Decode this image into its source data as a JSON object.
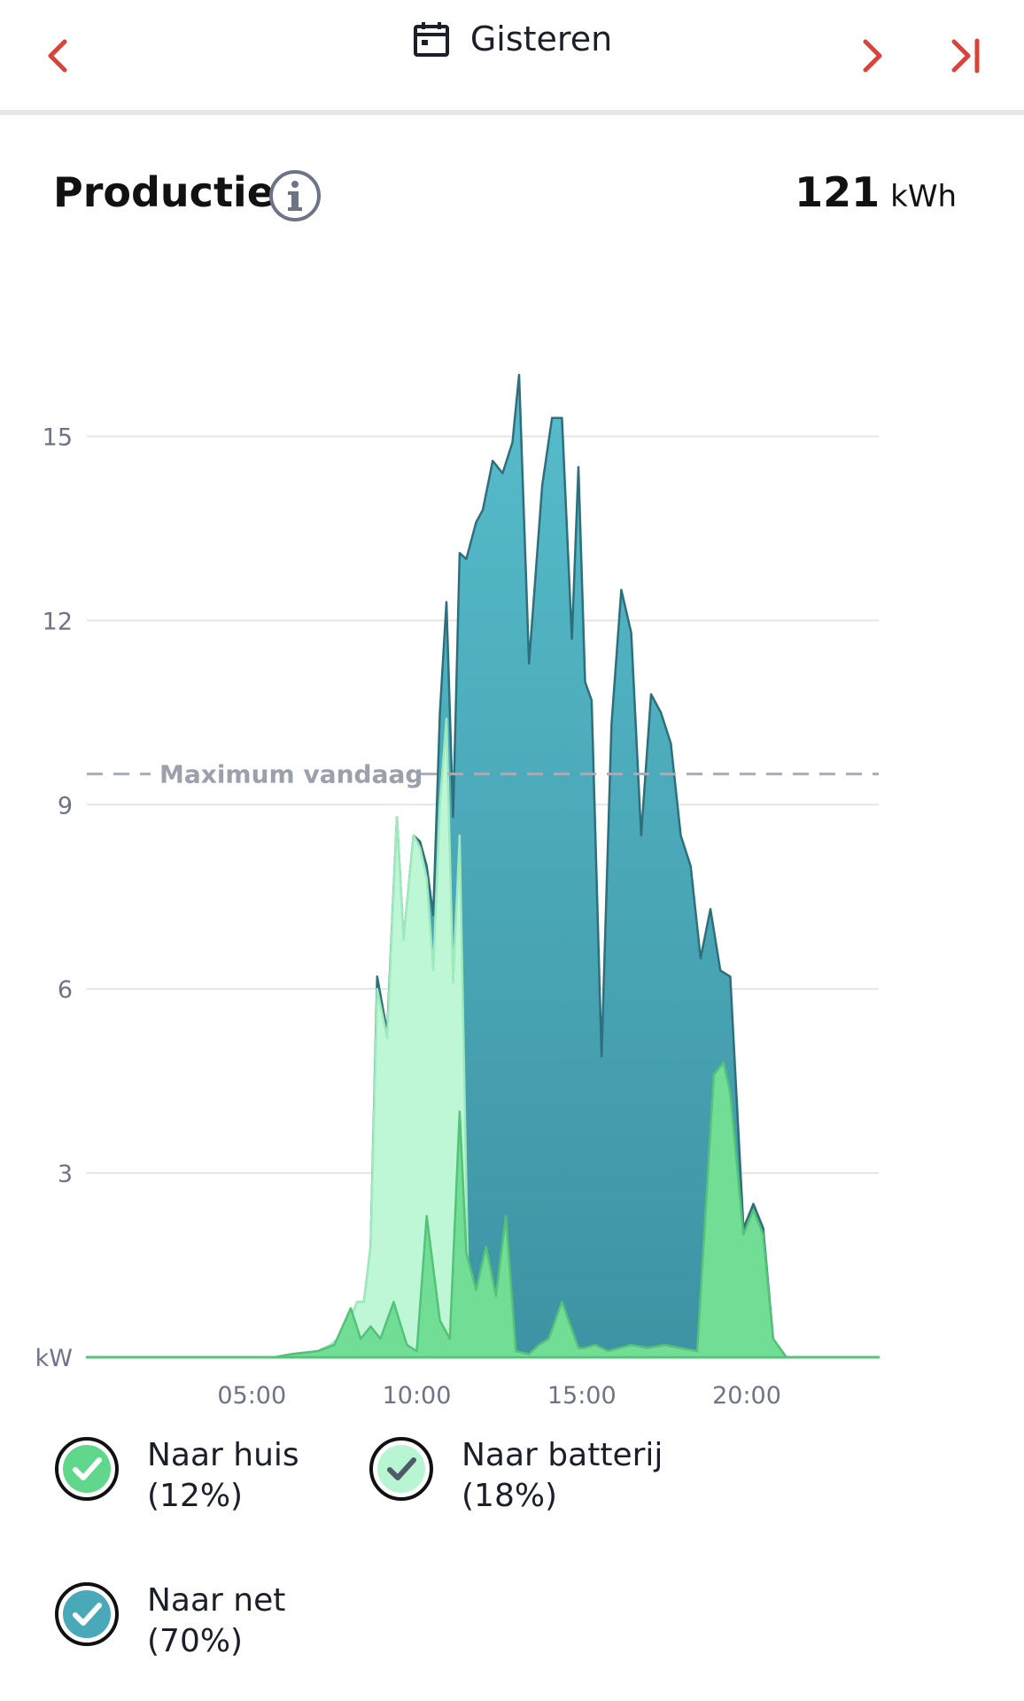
{
  "header": {
    "date_label": "Gisteren",
    "icons": {
      "prev": "chevron-left-icon",
      "next": "chevron-right-icon",
      "last": "skip-to-end-icon",
      "calendar": "calendar-icon"
    }
  },
  "production": {
    "title": "Productie",
    "total_value": "121",
    "total_unit": "kWh"
  },
  "colors": {
    "accent": "#d9433a",
    "net_fill": "#4aa9b8",
    "net_stroke": "#2e6f7c",
    "battery_fill": "#bdf7d5",
    "house_fill": "#72dd95",
    "house_stroke": "#54c278",
    "grid": "#e3e5e8",
    "max_line": "#a7adb8"
  },
  "chart_data": {
    "type": "area",
    "y_unit_label": "kW",
    "y_ticks": [
      "3",
      "6",
      "9",
      "12",
      "15"
    ],
    "x_ticks": [
      "05:00",
      "10:00",
      "15:00",
      "20:00"
    ],
    "ylim": [
      0,
      17
    ],
    "grid": true,
    "max_line": {
      "label": "Maximum vandaag",
      "value": 9.5
    },
    "series": [
      {
        "name": "Naar net",
        "x": [
          0,
          5.7,
          6.2,
          7.0,
          7.4,
          7.8,
          8.2,
          8.4,
          8.6,
          8.8,
          9.1,
          9.4,
          9.6,
          9.9,
          10.1,
          10.3,
          10.5,
          10.7,
          10.9,
          11.1,
          11.3,
          11.5,
          11.8,
          12.0,
          12.3,
          12.6,
          12.9,
          13.1,
          13.4,
          13.8,
          14.1,
          14.4,
          14.7,
          14.9,
          15.1,
          15.3,
          15.6,
          15.9,
          16.2,
          16.5,
          16.8,
          17.1,
          17.4,
          17.7,
          18.0,
          18.3,
          18.6,
          18.9,
          19.2,
          19.5,
          19.9,
          20.2,
          20.5,
          20.8,
          21.2,
          22,
          24
        ],
        "values": [
          0,
          0,
          0.05,
          0.1,
          0.2,
          0.4,
          0.9,
          0.9,
          1.8,
          6.2,
          5.3,
          8.8,
          6.8,
          8.5,
          8.4,
          8.0,
          7.2,
          10.5,
          12.3,
          8.8,
          13.1,
          13.0,
          13.6,
          13.8,
          14.6,
          14.4,
          14.9,
          16.0,
          11.3,
          14.2,
          15.3,
          15.3,
          11.7,
          14.5,
          11.0,
          10.7,
          4.9,
          10.3,
          12.5,
          11.8,
          8.5,
          10.8,
          10.5,
          10.0,
          8.5,
          8.0,
          6.5,
          7.3,
          6.3,
          6.2,
          2.1,
          2.5,
          2.1,
          0.3,
          0,
          0,
          0
        ]
      },
      {
        "name": "Naar batterij",
        "x": [
          0,
          5.7,
          6.2,
          7.0,
          7.4,
          7.8,
          8.2,
          8.4,
          8.6,
          8.8,
          9.1,
          9.4,
          9.6,
          9.9,
          10.1,
          10.3,
          10.5,
          10.7,
          10.9,
          11.1,
          11.3,
          11.6,
          12.0,
          24
        ],
        "values": [
          0,
          0,
          0.05,
          0.1,
          0.2,
          0.4,
          0.9,
          0.9,
          1.8,
          6.0,
          5.2,
          8.8,
          6.8,
          8.5,
          8.3,
          7.8,
          6.3,
          9.0,
          10.4,
          6.1,
          8.5,
          0,
          0,
          0
        ]
      },
      {
        "name": "Naar huis",
        "x": [
          0,
          5.7,
          6.2,
          7.0,
          7.5,
          8.0,
          8.3,
          8.6,
          8.9,
          9.3,
          9.7,
          10.0,
          10.3,
          10.7,
          11.0,
          11.3,
          11.5,
          11.8,
          12.1,
          12.4,
          12.7,
          13.0,
          13.4,
          13.7,
          14.0,
          14.4,
          14.9,
          15.1,
          15.4,
          15.8,
          16.5,
          17.0,
          17.5,
          18.0,
          18.5,
          19.0,
          19.3,
          19.5,
          19.9,
          20.2,
          20.5,
          20.8,
          21.2,
          22,
          24
        ],
        "values": [
          0,
          0,
          0.05,
          0.1,
          0.2,
          0.8,
          0.3,
          0.5,
          0.3,
          0.9,
          0.2,
          0.1,
          2.3,
          0.6,
          0.3,
          4.0,
          1.7,
          1.1,
          1.8,
          1.0,
          2.3,
          0.1,
          0.05,
          0.2,
          0.3,
          0.9,
          0.15,
          0.15,
          0.2,
          0.1,
          0.2,
          0.15,
          0.2,
          0.15,
          0.1,
          4.6,
          4.8,
          4.3,
          2.0,
          2.4,
          2.0,
          0.3,
          0,
          0,
          0
        ]
      }
    ]
  },
  "legend": [
    {
      "title": "Naar huis",
      "pct": "(12%)",
      "icon": "check-circle-icon",
      "color": "#5fd88b"
    },
    {
      "title": "Naar batterij",
      "pct": "(18%)",
      "icon": "check-circle-icon",
      "color": "#b8f5d2"
    },
    {
      "title": "Naar net",
      "pct": "(70%)",
      "icon": "check-circle-icon",
      "color": "#4aa9b8"
    }
  ]
}
